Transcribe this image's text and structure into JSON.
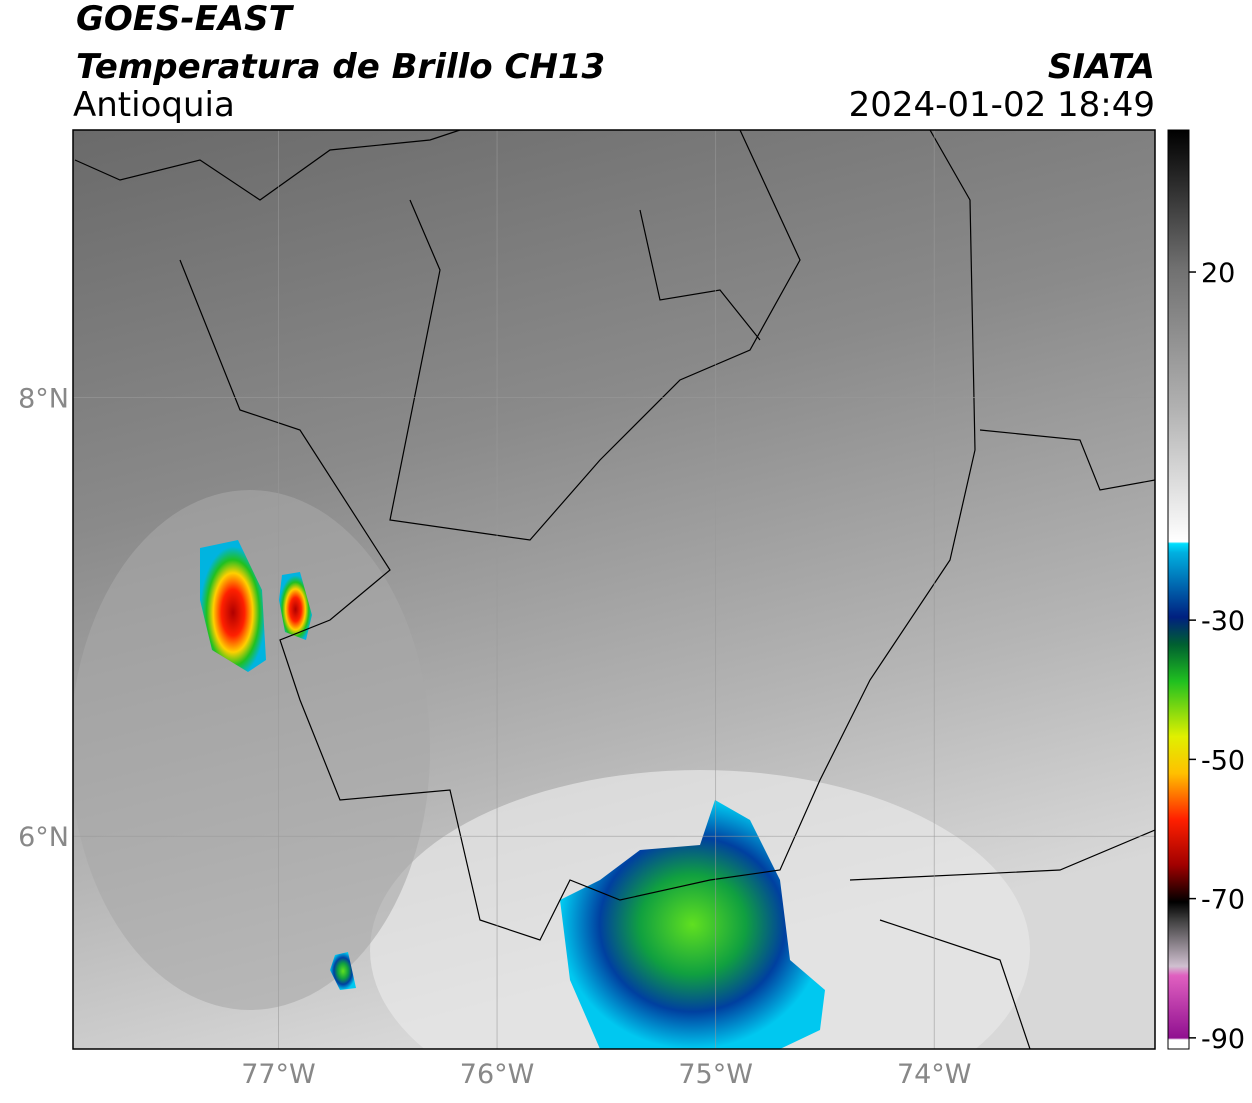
{
  "header": {
    "satellite": "GOES-EAST",
    "product": "Temperatura de Brillo CH13",
    "region": "Antioquia",
    "agency": "SIATA",
    "datetime": "2024-01-02 18:49"
  },
  "map": {
    "xlim": [
      -77.94,
      -72.99
    ],
    "ylim": [
      5.03,
      9.22
    ],
    "xticks": [
      {
        "value": -77,
        "label": "77°W"
      },
      {
        "value": -76,
        "label": "76°W"
      },
      {
        "value": -75,
        "label": "75°W"
      },
      {
        "value": -74,
        "label": "74°W"
      }
    ],
    "yticks": [
      {
        "value": 8,
        "label": "8°N"
      },
      {
        "value": 6,
        "label": "6°N"
      }
    ]
  },
  "colorbar": {
    "lim": [
      -91.6,
      40.4
    ],
    "ticks": [
      20,
      -30,
      -50,
      -70,
      -90
    ]
  }
}
